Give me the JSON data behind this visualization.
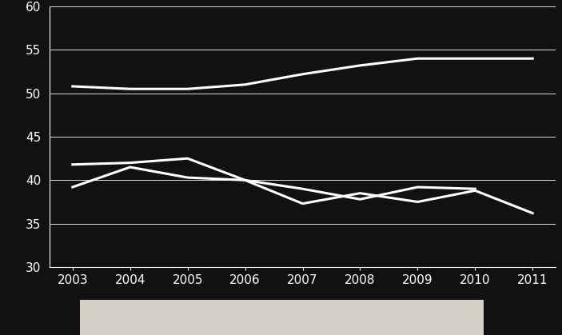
{
  "years": [
    2003,
    2004,
    2005,
    2006,
    2007,
    2008,
    2009,
    2010,
    2011
  ],
  "series1": [
    50.8,
    50.5,
    50.5,
    51.0,
    52.2,
    53.2,
    54.0,
    54.0,
    54.0
  ],
  "series2": [
    41.8,
    42.0,
    42.5,
    40.0,
    37.3,
    38.5,
    37.5,
    38.8,
    36.2
  ],
  "series3": [
    39.2,
    41.5,
    40.3,
    40.0,
    39.0,
    37.8,
    39.2,
    39.0,
    null
  ],
  "line_color": "#ffffff",
  "background_color": "#111111",
  "plot_bg_color": "#111111",
  "grid_color": "#ffffff",
  "tick_color": "#ffffff",
  "ylim": [
    30,
    60
  ],
  "yticks": [
    30,
    35,
    40,
    45,
    50,
    55,
    60
  ],
  "xlim": [
    2002.6,
    2011.4
  ],
  "linewidth": 2.2,
  "footer_bg": "#d4d0c8",
  "tick_fontsize": 11
}
